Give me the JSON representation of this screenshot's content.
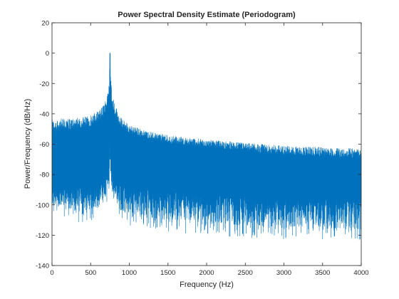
{
  "chart_data": {
    "type": "line",
    "title": "Power Spectral Density Estimate (Periodogram)",
    "xlabel": "Frequency (Hz)",
    "ylabel": "Power/Frequency (dB/Hz)",
    "xlim": [
      0,
      4000
    ],
    "ylim": [
      -140,
      20
    ],
    "xticks": [
      0,
      500,
      1000,
      1500,
      2000,
      2500,
      3000,
      3500,
      4000
    ],
    "yticks": [
      20,
      0,
      -20,
      -40,
      -60,
      -80,
      -100,
      -120,
      -140
    ],
    "grid": false,
    "line_color": "#0072BD",
    "peak": {
      "x": 750,
      "y": 0
    },
    "series": [
      {
        "x": [
          0,
          100,
          250,
          400,
          500,
          600,
          650,
          700,
          725,
          740,
          750,
          760,
          775,
          800,
          850,
          900,
          1000,
          1200,
          1500,
          2000,
          2500,
          3000,
          3500,
          4000
        ],
        "upper": [
          -44,
          -43,
          -43,
          -42,
          -41,
          -38,
          -35,
          -30,
          -22,
          -14,
          0,
          -15,
          -23,
          -31,
          -38,
          -43,
          -47,
          -51,
          -54,
          -57,
          -59,
          -61,
          -62,
          -63
        ],
        "band_top": [
          -64,
          -62,
          -60,
          -58,
          -57,
          -56,
          -55,
          -50,
          -45,
          -40,
          -20,
          -40,
          -45,
          -50,
          -56,
          -60,
          -61,
          -62,
          -66,
          -69,
          -72,
          -74,
          -76,
          -77
        ],
        "band_bottom": [
          -88,
          -86,
          -84,
          -84,
          -83,
          -83,
          -82,
          -80,
          -78,
          -75,
          -45,
          -75,
          -78,
          -80,
          -82,
          -83,
          -84,
          -85,
          -86,
          -87,
          -89,
          -89,
          -90,
          -90
        ],
        "lower": [
          -100,
          -102,
          -104,
          -104,
          -104,
          -102,
          -100,
          -96,
          -90,
          -84,
          -50,
          -84,
          -90,
          -96,
          -100,
          -104,
          -106,
          -108,
          -110,
          -112,
          -114,
          -115,
          -116,
          -117
        ]
      }
    ]
  }
}
